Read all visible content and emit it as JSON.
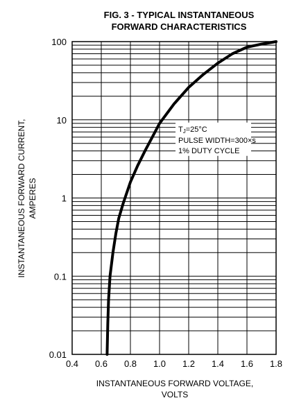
{
  "chart_data": {
    "type": "line",
    "title_line1": "FIG. 3 - TYPICAL INSTANTANEOUS",
    "title_line2": "FORWARD CHARACTERISTICS",
    "xlabel_line1": "INSTANTANEOUS FORWARD VOLTAGE,",
    "xlabel_line2": "VOLTS",
    "ylabel_line1": "INSTANTANEOUS FORWARD CURRENT,",
    "ylabel_line2": "AMPERES",
    "xlim": [
      0.4,
      1.8
    ],
    "ylim": [
      0.01,
      100
    ],
    "yscale": "log",
    "grid": true,
    "x_ticks": [
      "0.4",
      "0.6",
      "0.8",
      "1.0",
      "1.2",
      "1.4",
      "1.6",
      "1.8"
    ],
    "y_ticks": [
      "0.01",
      "0.1",
      "1",
      "10",
      "100"
    ],
    "annotations": {
      "tj": "T",
      "tj_sub": "J",
      "tj_rest": "=25°C",
      "pulse": "PULSE WIDTH=300×s",
      "duty": "1% DUTY CYCLE"
    },
    "series": [
      {
        "x": [
          0.64,
          0.645,
          0.65,
          0.66,
          0.68,
          0.7,
          0.72,
          0.75,
          0.8,
          0.85,
          0.9,
          0.95,
          1.0,
          1.1,
          1.2,
          1.3,
          1.4,
          1.5,
          1.6,
          1.7,
          1.8
        ],
        "y": [
          0.01,
          0.025,
          0.05,
          0.1,
          0.2,
          0.35,
          0.55,
          0.85,
          1.6,
          2.6,
          4.0,
          6.0,
          9.0,
          16,
          26,
          38,
          53,
          70,
          85,
          93,
          100
        ]
      }
    ]
  }
}
